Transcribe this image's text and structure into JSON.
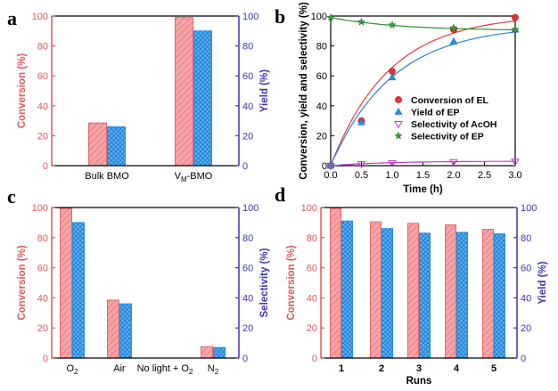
{
  "colors": {
    "red": "#e8666a",
    "red_fill": "#f5a5a8",
    "blue": "#1f8fe8",
    "blue_fill": "#5ab4f2",
    "axis_left": "#e3565b",
    "axis_right": "#3b37b0",
    "green": "#2f8f2f",
    "magenta": "#c038c8"
  },
  "chart_data": [
    {
      "panel": "a",
      "type": "bar",
      "categories": [
        "Bulk BMO",
        "V<sub>M</sub>-BMO"
      ],
      "category_labels": [
        "Bulk BMO",
        "VM-BMO"
      ],
      "series": [
        {
          "name": "Conversion",
          "axis": "left",
          "values": [
            28.5,
            99
          ]
        },
        {
          "name": "Yield",
          "axis": "right",
          "values": [
            26,
            90
          ]
        }
      ],
      "ylabel": "Conversion (%)",
      "y2label": "Yield (%)",
      "ylim": [
        0,
        100
      ],
      "y2lim": [
        0,
        100
      ],
      "yticks": [
        "0",
        "20",
        "40",
        "60",
        "80",
        "100"
      ],
      "y2ticks": [
        "0",
        "20",
        "40",
        "60",
        "80",
        "100"
      ]
    },
    {
      "panel": "b",
      "type": "line",
      "xlabel": "Time (h)",
      "ylabel": "Conversion, yield and selectivity (%)",
      "xlim": [
        0,
        3
      ],
      "ylim": [
        0,
        100
      ],
      "xticks": [
        "0.0",
        "0.5",
        "1.0",
        "1.5",
        "2.0",
        "2.5",
        "3.0"
      ],
      "yticks": [
        "0",
        "20",
        "40",
        "60",
        "80",
        "100"
      ],
      "series": [
        {
          "name": "Conversion of EL",
          "marker": "circle",
          "x": [
            0,
            0.5,
            1,
            2,
            3
          ],
          "y": [
            0,
            30,
            63,
            91,
            99
          ]
        },
        {
          "name": "Yield of EP",
          "marker": "triangle",
          "x": [
            0,
            0.5,
            1,
            2,
            3
          ],
          "y": [
            0,
            29,
            59,
            83,
            91
          ]
        },
        {
          "name": "Selectivity of AcOH",
          "marker": "down-triangle",
          "x": [
            0,
            0.5,
            1,
            2,
            3
          ],
          "y": [
            0,
            1.2,
            1.8,
            2.5,
            2.8
          ]
        },
        {
          "name": "Selectivity of EP",
          "marker": "star",
          "x": [
            0,
            0.5,
            1,
            2,
            3
          ],
          "y": [
            99,
            96,
            94,
            92,
            91
          ]
        }
      ],
      "legend": [
        "Conversion of EL",
        "Yield of EP",
        "Selectivity of AcOH",
        "Selectivity of EP"
      ]
    },
    {
      "panel": "c",
      "type": "bar",
      "categories": [
        "O2",
        "Air",
        "No light + O2",
        "N2"
      ],
      "series": [
        {
          "name": "Conversion",
          "axis": "left",
          "values": [
            99.5,
            38.5,
            0,
            7.5
          ]
        },
        {
          "name": "Selectivity",
          "axis": "right",
          "values": [
            90,
            36,
            0,
            7
          ]
        }
      ],
      "ylabel": "Conversion (%)",
      "y2label": "Selectivity (%)",
      "ylim": [
        0,
        100
      ],
      "y2lim": [
        0,
        100
      ],
      "yticks": [
        "0",
        "20",
        "40",
        "60",
        "80",
        "100"
      ],
      "y2ticks": [
        "0",
        "20",
        "40",
        "60",
        "80",
        "100"
      ]
    },
    {
      "panel": "d",
      "type": "bar",
      "categories": [
        "1",
        "2",
        "3",
        "4",
        "5"
      ],
      "xlabel": "Runs",
      "series": [
        {
          "name": "Conversion",
          "axis": "left",
          "values": [
            99.5,
            90.5,
            89.5,
            88.5,
            85.5
          ]
        },
        {
          "name": "Yield",
          "axis": "right",
          "values": [
            91,
            86,
            83,
            83.5,
            82.5
          ]
        }
      ],
      "ylabel": "Conversion (%)",
      "y2label": "Yield (%)",
      "ylim": [
        0,
        100
      ],
      "y2lim": [
        0,
        100
      ],
      "yticks": [
        "0",
        "20",
        "40",
        "60",
        "80",
        "100"
      ],
      "y2ticks": [
        "0",
        "20",
        "40",
        "60",
        "80",
        "100"
      ]
    }
  ]
}
